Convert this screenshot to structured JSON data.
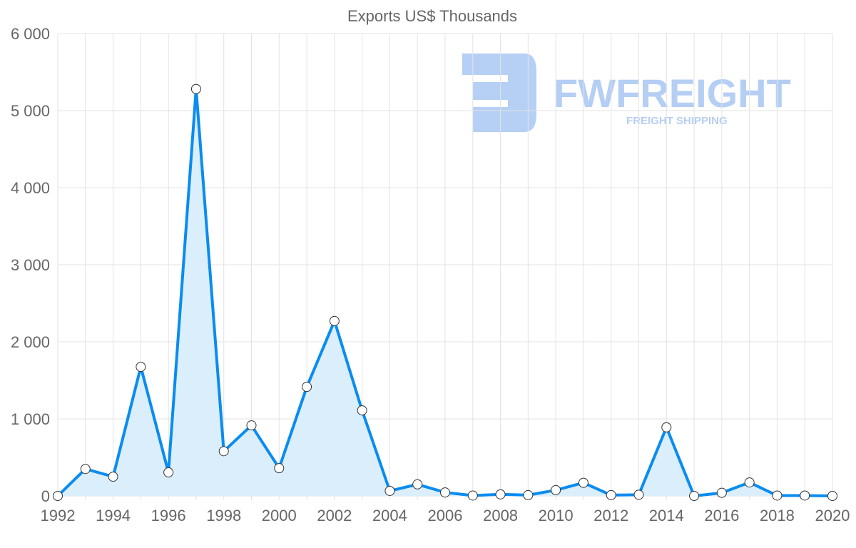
{
  "chart_data": {
    "type": "line",
    "title": "Exports US$ Thousands",
    "xlabel": "",
    "ylabel": "",
    "x": [
      1992,
      1993,
      1994,
      1995,
      1996,
      1997,
      1998,
      1999,
      2000,
      2001,
      2002,
      2003,
      2004,
      2005,
      2006,
      2007,
      2008,
      2009,
      2010,
      2011,
      2012,
      2013,
      2014,
      2015,
      2016,
      2017,
      2018,
      2019,
      2020
    ],
    "series": [
      {
        "name": "Exports",
        "values": [
          0,
          350,
          250,
          1675,
          305,
          5280,
          580,
          915,
          360,
          1415,
          2270,
          1110,
          65,
          150,
          45,
          5,
          20,
          10,
          75,
          170,
          10,
          15,
          890,
          0,
          40,
          175,
          5,
          5,
          0
        ],
        "color": "#0a8cf0",
        "fill": "#dbeefc"
      }
    ],
    "ylim": [
      0,
      6000
    ],
    "yticks": [
      0,
      1000,
      2000,
      3000,
      4000,
      5000,
      6000
    ],
    "ytick_labels": [
      "0",
      "1 000",
      "2 000",
      "3 000",
      "4 000",
      "5 000",
      "6 000"
    ],
    "xtick_labels": [
      "1992",
      "1994",
      "1996",
      "1998",
      "2000",
      "2002",
      "2004",
      "2006",
      "2008",
      "2010",
      "2012",
      "2014",
      "2016",
      "2018",
      "2020"
    ],
    "grid": true,
    "legend": "none"
  },
  "watermark": {
    "name": "FWFREIGHT",
    "tagline": "FREIGHT SHIPPING"
  }
}
